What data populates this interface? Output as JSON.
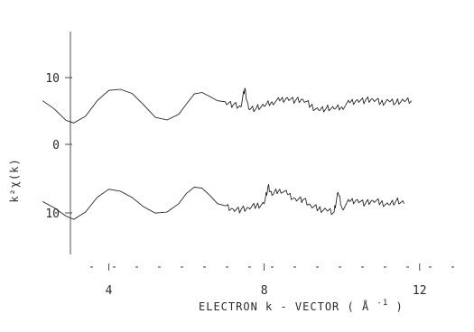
{
  "chart_data": {
    "type": "line",
    "xlabel": "ELECTRON  k - VECTOR  ( Å",
    "xlabel_sup": "-1",
    "xlabel_close": ")",
    "ylabel": "k²χ(k)",
    "xlim": [
      1.2,
      13.4
    ],
    "x_ticks": [
      {
        "value": 4,
        "label": "4"
      },
      {
        "value": 8,
        "label": "8"
      },
      {
        "value": 12,
        "label": "12"
      }
    ],
    "y_ticks_left": [
      {
        "label": "10",
        "level": "top-plus"
      },
      {
        "label": "0",
        "level": "top-zero"
      },
      {
        "label": "10",
        "level": "bottom-minus"
      }
    ],
    "grid": false,
    "legend": "none",
    "series": [
      {
        "offset": "top",
        "x": [
          2.3,
          2.6,
          2.9,
          3.1,
          3.4,
          3.7,
          4.0,
          4.3,
          4.6,
          4.9,
          5.2,
          5.5,
          5.8,
          6.0,
          6.2,
          6.4,
          6.6,
          6.8,
          7.0,
          7.2,
          7.4,
          7.5,
          7.6,
          7.8,
          8.0,
          8.2,
          8.4,
          8.6,
          8.8,
          9.0,
          9.2,
          9.4,
          9.6,
          9.8,
          10.0,
          10.2,
          10.4,
          10.6,
          10.8,
          11.0,
          11.2,
          11.4,
          11.6,
          11.8
        ],
        "y": [
          4.5,
          0.5,
          -5.0,
          -6.2,
          -3.0,
          4.5,
          9.5,
          10.0,
          8.0,
          2.5,
          -3.5,
          -4.8,
          -2.0,
          3.0,
          7.8,
          8.5,
          6.5,
          4.5,
          4.0,
          2.5,
          1.5,
          10.5,
          0.5,
          1.0,
          1.8,
          4.0,
          4.5,
          6.0,
          4.5,
          5.0,
          2.0,
          0.0,
          1.0,
          0.5,
          1.5,
          3.5,
          5.0,
          4.5,
          5.2,
          3.5,
          4.5,
          3.8,
          4.2,
          4.5
        ]
      },
      {
        "offset": "bottom",
        "x": [
          2.3,
          2.6,
          2.9,
          3.1,
          3.4,
          3.7,
          4.0,
          4.3,
          4.6,
          4.9,
          5.2,
          5.5,
          5.8,
          6.0,
          6.2,
          6.4,
          6.6,
          6.8,
          7.0,
          7.2,
          7.4,
          7.6,
          7.8,
          8.0,
          8.1,
          8.2,
          8.4,
          8.6,
          8.8,
          9.0,
          9.2,
          9.4,
          9.6,
          9.8,
          9.9,
          10.0,
          10.2,
          10.4,
          10.6,
          10.8,
          11.0,
          11.2,
          11.4,
          11.6
        ],
        "y": [
          -5.0,
          -8.0,
          -12.0,
          -13.5,
          -10.0,
          -3.0,
          1.0,
          0.0,
          -3.0,
          -7.5,
          -10.5,
          -10.0,
          -6.0,
          -1.0,
          2.0,
          1.5,
          -2.0,
          -6.0,
          -7.0,
          -8.5,
          -9.0,
          -8.0,
          -7.0,
          -6.0,
          2.5,
          -2.0,
          1.0,
          -1.5,
          -3.5,
          -4.0,
          -7.0,
          -8.5,
          -9.0,
          -10.0,
          -0.5,
          -8.0,
          -5.0,
          -4.0,
          -6.0,
          -4.5,
          -5.5,
          -6.5,
          -4.5,
          -6.0
        ]
      }
    ]
  }
}
